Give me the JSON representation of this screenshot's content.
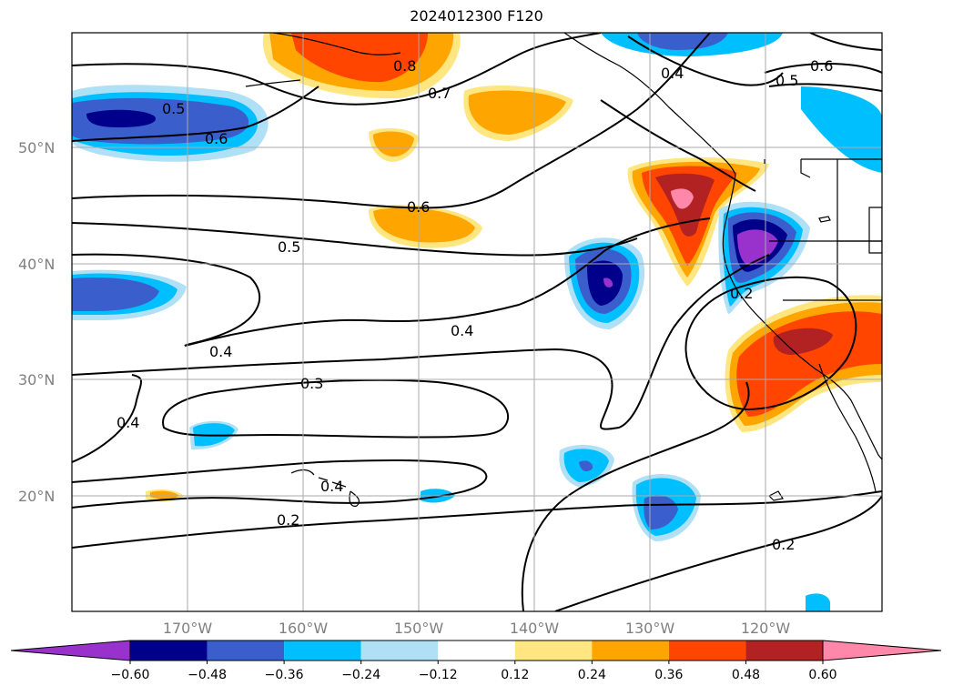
{
  "title": "2024012300 F120",
  "map": {
    "lat_ticks": [
      "50°N",
      "40°N",
      "30°N",
      "20°N"
    ],
    "lon_ticks": [
      "170°W",
      "160°W",
      "150°W",
      "140°W",
      "130°W",
      "120°W"
    ],
    "contour_labels": [
      "0.8",
      "0.7",
      "0.5",
      "0.6",
      "0.4",
      "0.6",
      "0.5",
      "0.6",
      "0.5",
      "0.4",
      "0.4",
      "0.3",
      "0.4",
      "0.2",
      "0.2",
      "0.2",
      "0.4"
    ]
  },
  "colorbar": {
    "ticks": [
      "−0.60",
      "−0.48",
      "−0.36",
      "−0.24",
      "−0.12",
      "0.12",
      "0.24",
      "0.36",
      "0.48",
      "0.60"
    ],
    "colors": [
      "#9932cc",
      "#00008b",
      "#3a5fcd",
      "#00bfff",
      "#b0e0f6",
      "#ffffff",
      "#ffe680",
      "#ffa500",
      "#ff4500",
      "#b22222",
      "#ff88aa",
      "#ff88aa"
    ]
  }
}
